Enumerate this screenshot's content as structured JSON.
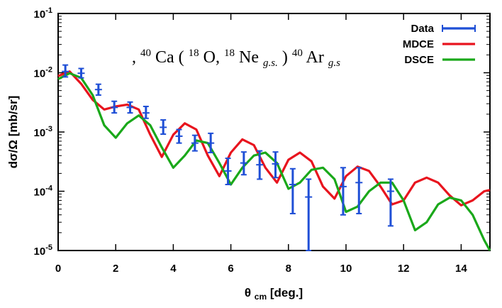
{
  "chart_data": {
    "type": "line",
    "title": {
      "pre": ", ",
      "a_sup": "40",
      "a": "Ca (",
      "b_sup": "18",
      "b": "O, ",
      "c_sup": "18",
      "c": "Ne",
      "c_sub": "g.s.",
      "d": ")",
      "e_sup": "40",
      "e": "Ar",
      "e_sub": "g.s"
    },
    "xlabel": {
      "main": "θ",
      "sub": "cm",
      "rest": " [deg.]"
    },
    "ylabel": "dσ/Ω [mb/sr]",
    "xlim": [
      0,
      15
    ],
    "ylim": [
      1e-05,
      0.1
    ],
    "yscale": "log",
    "x_ticks": [
      "0",
      "2",
      "4",
      "6",
      "8",
      "10",
      "12",
      "14"
    ],
    "y_ticks": [
      {
        "base": "10",
        "exp": "-5",
        "value": 1e-05
      },
      {
        "base": "10",
        "exp": "-4",
        "value": 0.0001
      },
      {
        "base": "10",
        "exp": "-3",
        "value": 0.001
      },
      {
        "base": "10",
        "exp": "-2",
        "value": 0.01
      },
      {
        "base": "10",
        "exp": "-1",
        "value": 0.1
      }
    ],
    "legend": {
      "position": "top-right",
      "entries": [
        {
          "label": "Data",
          "color": "#1f4fd6"
        },
        {
          "label": "MDCE",
          "color": "#e8141e"
        },
        {
          "label": "DSCE",
          "color": "#1aa81a"
        }
      ]
    },
    "series": [
      {
        "name": "Data",
        "type": "errorbar",
        "color": "#1f4fd6",
        "points": [
          {
            "x": 0.25,
            "y": 0.0105,
            "lo": 0.0085,
            "hi": 0.0135
          },
          {
            "x": 0.8,
            "y": 0.0098,
            "lo": 0.0082,
            "hi": 0.0118
          },
          {
            "x": 1.4,
            "y": 0.0052,
            "lo": 0.0042,
            "hi": 0.0064
          },
          {
            "x": 1.95,
            "y": 0.0026,
            "lo": 0.0021,
            "hi": 0.0033
          },
          {
            "x": 2.5,
            "y": 0.0026,
            "lo": 0.0021,
            "hi": 0.0032
          },
          {
            "x": 3.05,
            "y": 0.0021,
            "lo": 0.0017,
            "hi": 0.0027
          },
          {
            "x": 3.65,
            "y": 0.0012,
            "lo": 0.00092,
            "hi": 0.0016
          },
          {
            "x": 4.2,
            "y": 0.00085,
            "lo": 0.00065,
            "hi": 0.0011
          },
          {
            "x": 4.75,
            "y": 0.00065,
            "lo": 0.00048,
            "hi": 0.00088
          },
          {
            "x": 5.3,
            "y": 0.00065,
            "lo": 0.00045,
            "hi": 0.00095
          },
          {
            "x": 5.9,
            "y": 0.00022,
            "lo": 0.00013,
            "hi": 0.00036
          },
          {
            "x": 6.45,
            "y": 0.0003,
            "lo": 0.00019,
            "hi": 0.00046
          },
          {
            "x": 7.0,
            "y": 0.00028,
            "lo": 0.00016,
            "hi": 0.00048
          },
          {
            "x": 7.55,
            "y": 0.00029,
            "lo": 0.00017,
            "hi": 0.00046
          },
          {
            "x": 8.15,
            "y": 0.00013,
            "lo": 4.2e-05,
            "hi": 0.00024
          },
          {
            "x": 8.7,
            "y": 8e-05,
            "lo": 9.5e-06,
            "hi": 0.00016
          },
          {
            "x": 9.9,
            "y": 0.00012,
            "lo": 4e-05,
            "hi": 0.00025
          },
          {
            "x": 10.45,
            "y": 0.00014,
            "lo": 4.2e-05,
            "hi": 0.00025
          },
          {
            "x": 11.55,
            "y": 0.0001,
            "lo": 2.6e-05,
            "hi": 0.00016
          }
        ]
      },
      {
        "name": "MDCE",
        "type": "line",
        "color": "#e8141e",
        "x": [
          0,
          0.4,
          0.8,
          1.2,
          1.6,
          2.0,
          2.4,
          2.8,
          3.2,
          3.6,
          4.0,
          4.4,
          4.8,
          5.2,
          5.6,
          6.0,
          6.4,
          6.8,
          7.2,
          7.6,
          8.0,
          8.4,
          8.8,
          9.2,
          9.6,
          10.0,
          10.4,
          10.8,
          11.2,
          11.6,
          12.0,
          12.4,
          12.8,
          13.2,
          13.6,
          14.0,
          14.4,
          14.8,
          15.0
        ],
        "y": [
          0.0088,
          0.0105,
          0.0065,
          0.0035,
          0.0024,
          0.0027,
          0.0029,
          0.0024,
          0.0009,
          0.00038,
          0.0009,
          0.0014,
          0.0011,
          0.0004,
          0.00018,
          0.00045,
          0.00075,
          0.0006,
          0.00025,
          0.00014,
          0.00034,
          0.00045,
          0.00032,
          0.00012,
          7.5e-05,
          0.00018,
          0.00026,
          0.00022,
          0.00012,
          6e-05,
          7e-05,
          0.00014,
          0.00017,
          0.00014,
          8.5e-05,
          5.8e-05,
          7e-05,
          0.0001,
          0.000105
        ]
      },
      {
        "name": "DSCE",
        "type": "line",
        "color": "#1aa81a",
        "x": [
          0,
          0.4,
          0.8,
          1.2,
          1.6,
          2.0,
          2.4,
          2.8,
          3.2,
          3.6,
          4.0,
          4.4,
          4.8,
          5.2,
          5.6,
          6.0,
          6.4,
          6.8,
          7.2,
          7.6,
          8.0,
          8.4,
          8.8,
          9.2,
          9.6,
          10.0,
          10.4,
          10.8,
          11.2,
          11.6,
          12.0,
          12.4,
          12.8,
          13.2,
          13.6,
          14.0,
          14.4,
          14.8,
          15.0
        ],
        "y": [
          0.0078,
          0.0098,
          0.0082,
          0.0042,
          0.0013,
          0.0008,
          0.0014,
          0.0019,
          0.0013,
          0.00055,
          0.00025,
          0.0004,
          0.00072,
          0.00065,
          0.0003,
          0.00013,
          0.00025,
          0.0004,
          0.00045,
          0.0003,
          0.00011,
          0.00014,
          0.00023,
          0.00025,
          0.00016,
          4.5e-05,
          5.5e-05,
          0.0001,
          0.00014,
          0.00014,
          7e-05,
          2.2e-05,
          3e-05,
          6e-05,
          7.8e-05,
          7e-05,
          4e-05,
          1.5e-05,
          1e-05
        ]
      }
    ]
  }
}
